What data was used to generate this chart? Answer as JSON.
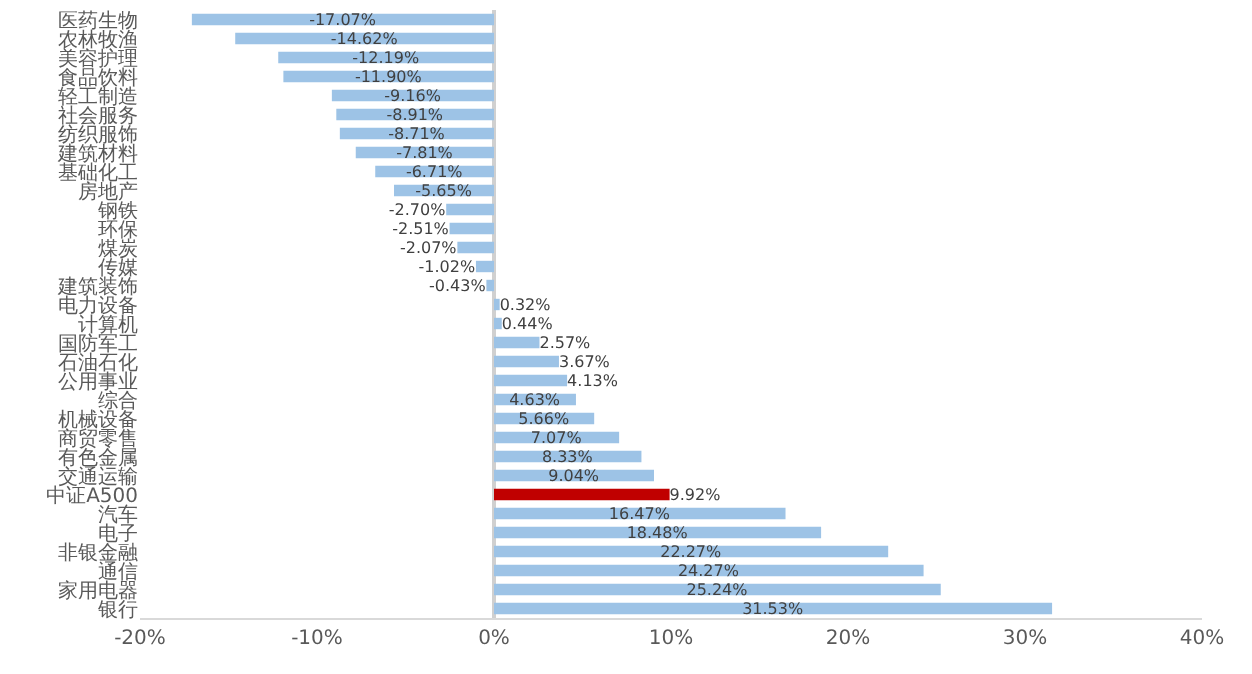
{
  "chart_data": {
    "type": "bar",
    "orientation": "horizontal",
    "categories": [
      "医药生物",
      "农林牧渔",
      "美容护理",
      "食品饮料",
      "轻工制造",
      "社会服务",
      "纺织服饰",
      "建筑材料",
      "基础化工",
      "房地产",
      "钢铁",
      "环保",
      "煤炭",
      "传媒",
      "建筑装饰",
      "电力设备",
      "计算机",
      "国防军工",
      "石油石化",
      "公用事业",
      "综合",
      "机械设备",
      "商贸零售",
      "有色金属",
      "交通运输",
      "中证A500",
      "汽车",
      "电子",
      "非银金融",
      "通信",
      "家用电器",
      "银行"
    ],
    "values": [
      -17.07,
      -14.62,
      -12.19,
      -11.9,
      -9.16,
      -8.91,
      -8.71,
      -7.81,
      -6.71,
      -5.65,
      -2.7,
      -2.51,
      -2.07,
      -1.02,
      -0.43,
      0.32,
      0.44,
      2.57,
      3.67,
      4.13,
      4.63,
      5.66,
      7.07,
      8.33,
      9.04,
      9.92,
      16.47,
      18.48,
      22.27,
      24.27,
      25.24,
      31.53
    ],
    "value_labels": [
      "-17.07%",
      "-14.62%",
      "-12.19%",
      "-11.90%",
      "-9.16%",
      "-8.91%",
      "-8.71%",
      "-7.81%",
      "-6.71%",
      "-5.65%",
      "-2.70%",
      "-2.51%",
      "-2.07%",
      "-1.02%",
      "-0.43%",
      "0.32%",
      "0.44%",
      "2.57%",
      "3.67%",
      "4.13%",
      "4.63%",
      "5.66%",
      "7.07%",
      "8.33%",
      "9.04%",
      "9.92%",
      "16.47%",
      "18.48%",
      "22.27%",
      "24.27%",
      "25.24%",
      "31.53%"
    ],
    "colors": [
      "#9dc3e6",
      "#9dc3e6",
      "#9dc3e6",
      "#9dc3e6",
      "#9dc3e6",
      "#9dc3e6",
      "#9dc3e6",
      "#9dc3e6",
      "#9dc3e6",
      "#9dc3e6",
      "#9dc3e6",
      "#9dc3e6",
      "#9dc3e6",
      "#9dc3e6",
      "#9dc3e6",
      "#9dc3e6",
      "#9dc3e6",
      "#9dc3e6",
      "#9dc3e6",
      "#9dc3e6",
      "#9dc3e6",
      "#9dc3e6",
      "#9dc3e6",
      "#9dc3e6",
      "#9dc3e6",
      "#c00000",
      "#9dc3e6",
      "#9dc3e6",
      "#9dc3e6",
      "#9dc3e6",
      "#9dc3e6",
      "#9dc3e6"
    ],
    "xlim": [
      -20,
      40
    ],
    "xticks": [
      {
        "value": -20,
        "label": "-20%"
      },
      {
        "value": -10,
        "label": "-10%"
      },
      {
        "value": 0,
        "label": "0%"
      },
      {
        "value": 10,
        "label": "10%"
      },
      {
        "value": 20,
        "label": "20%"
      },
      {
        "value": 30,
        "label": "30%"
      },
      {
        "value": 40,
        "label": "40%"
      }
    ]
  }
}
